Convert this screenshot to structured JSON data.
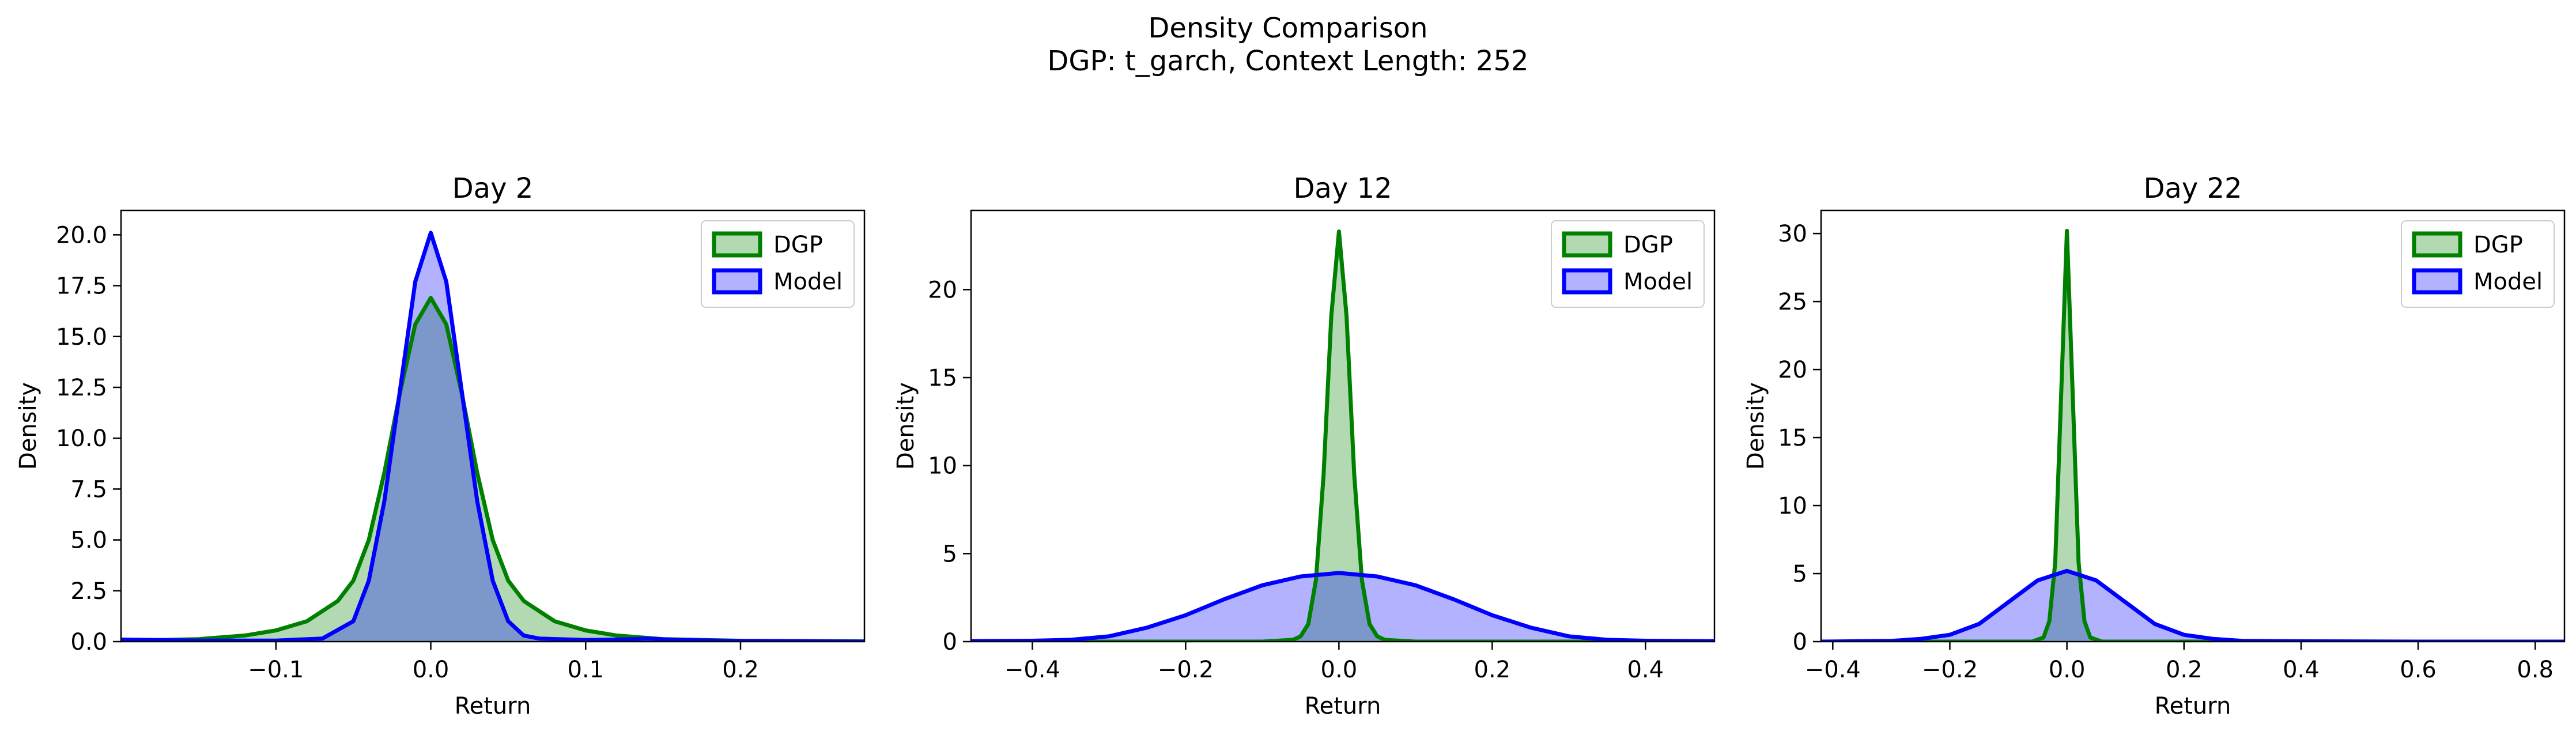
{
  "figure": {
    "title_line1": "Density Comparison",
    "title_line2": "DGP: t_garch, Context Length: 252"
  },
  "chart_data": [
    {
      "type": "area",
      "title": "Day 2",
      "xlabel": "Return",
      "ylabel": "Density",
      "xlim": [
        -0.2,
        0.28
      ],
      "ylim": [
        0,
        21.2
      ],
      "xticks": [
        -0.1,
        0.0,
        0.1,
        0.2
      ],
      "xtick_labels": [
        "−0.1",
        "0.0",
        "0.1",
        "0.2"
      ],
      "yticks": [
        0,
        2.5,
        5,
        7.5,
        10,
        12.5,
        15,
        17.5,
        20
      ],
      "ytick_labels": [
        "0.0",
        "2.5",
        "5.0",
        "7.5",
        "10.0",
        "12.5",
        "15.0",
        "17.5",
        "20.0"
      ],
      "grid": false,
      "legend": "top-right",
      "series": [
        {
          "name": "DGP",
          "color": "#008000",
          "fill_color": "#008000",
          "x": [
            -0.2,
            -0.15,
            -0.12,
            -0.1,
            -0.08,
            -0.06,
            -0.05,
            -0.04,
            -0.03,
            -0.02,
            -0.01,
            0.0,
            0.01,
            0.02,
            0.03,
            0.04,
            0.05,
            0.06,
            0.08,
            0.1,
            0.12,
            0.15,
            0.2,
            0.28
          ],
          "y": [
            0.03,
            0.12,
            0.3,
            0.55,
            1.0,
            2.0,
            3.0,
            5.0,
            8.3,
            12.2,
            15.6,
            16.9,
            15.6,
            12.2,
            8.3,
            5.0,
            3.0,
            2.0,
            1.0,
            0.55,
            0.3,
            0.12,
            0.04,
            0.01
          ]
        },
        {
          "name": "Model",
          "color": "#0000ff",
          "fill_color": "#0000ff",
          "x": [
            -0.2,
            -0.15,
            -0.1,
            -0.07,
            -0.05,
            -0.04,
            -0.03,
            -0.02,
            -0.01,
            0.0,
            0.01,
            0.02,
            0.03,
            0.04,
            0.05,
            0.06,
            0.07,
            0.1,
            0.12,
            0.14,
            0.16,
            0.2,
            0.28
          ],
          "y": [
            0.1,
            0.05,
            0.05,
            0.15,
            1.0,
            3.0,
            6.9,
            12.3,
            17.7,
            20.1,
            17.7,
            12.3,
            6.9,
            3.0,
            1.0,
            0.3,
            0.15,
            0.08,
            0.1,
            0.15,
            0.08,
            0.03,
            0.0
          ]
        }
      ]
    },
    {
      "type": "area",
      "title": "Day 12",
      "xlabel": "Return",
      "ylabel": "Density",
      "xlim": [
        -0.48,
        0.49
      ],
      "ylim": [
        0,
        24.5
      ],
      "xticks": [
        -0.4,
        -0.2,
        0.0,
        0.2,
        0.4
      ],
      "xtick_labels": [
        "−0.4",
        "−0.2",
        "0.0",
        "0.2",
        "0.4"
      ],
      "yticks": [
        0,
        5,
        10,
        15,
        20
      ],
      "ytick_labels": [
        "0",
        "5",
        "10",
        "15",
        "20"
      ],
      "grid": false,
      "legend": "top-right",
      "series": [
        {
          "name": "DGP",
          "color": "#008000",
          "fill_color": "#008000",
          "x": [
            -0.48,
            -0.1,
            -0.06,
            -0.05,
            -0.04,
            -0.03,
            -0.02,
            -0.01,
            0.0,
            0.01,
            0.02,
            0.03,
            0.04,
            0.05,
            0.06,
            0.1,
            0.49
          ],
          "y": [
            0.0,
            0.0,
            0.1,
            0.3,
            1.0,
            3.5,
            9.5,
            18.5,
            23.3,
            18.5,
            9.5,
            3.5,
            1.0,
            0.3,
            0.1,
            0.0,
            0.0
          ]
        },
        {
          "name": "Model",
          "color": "#0000ff",
          "fill_color": "#0000ff",
          "x": [
            -0.48,
            -0.4,
            -0.35,
            -0.3,
            -0.25,
            -0.2,
            -0.15,
            -0.1,
            -0.05,
            0.0,
            0.05,
            0.1,
            0.15,
            0.2,
            0.25,
            0.3,
            0.35,
            0.4,
            0.49
          ],
          "y": [
            0.03,
            0.05,
            0.1,
            0.3,
            0.8,
            1.5,
            2.4,
            3.2,
            3.7,
            3.9,
            3.7,
            3.2,
            2.4,
            1.5,
            0.8,
            0.3,
            0.1,
            0.05,
            0.02
          ]
        }
      ]
    },
    {
      "type": "area",
      "title": "Day 22",
      "xlabel": "Return",
      "ylabel": "Density",
      "xlim": [
        -0.42,
        0.85
      ],
      "ylim": [
        0,
        31.7
      ],
      "xticks": [
        -0.4,
        -0.2,
        0.0,
        0.2,
        0.4,
        0.6,
        0.8
      ],
      "xtick_labels": [
        "−0.4",
        "−0.2",
        "0.0",
        "0.2",
        "0.4",
        "0.6",
        "0.8"
      ],
      "yticks": [
        0,
        5,
        10,
        15,
        20,
        25,
        30
      ],
      "ytick_labels": [
        "0",
        "5",
        "10",
        "15",
        "20",
        "25",
        "30"
      ],
      "grid": false,
      "legend": "top-right",
      "series": [
        {
          "name": "DGP",
          "color": "#008000",
          "fill_color": "#008000",
          "x": [
            -0.42,
            -0.06,
            -0.04,
            -0.03,
            -0.02,
            -0.01,
            0.0,
            0.01,
            0.02,
            0.03,
            0.04,
            0.06,
            0.85
          ],
          "y": [
            0.0,
            0.0,
            0.3,
            1.5,
            5.8,
            18.0,
            30.2,
            18.0,
            5.8,
            1.5,
            0.3,
            0.0,
            0.0
          ]
        },
        {
          "name": "Model",
          "color": "#0000ff",
          "fill_color": "#0000ff",
          "x": [
            -0.42,
            -0.3,
            -0.25,
            -0.2,
            -0.15,
            -0.1,
            -0.05,
            0.0,
            0.05,
            0.1,
            0.15,
            0.2,
            0.25,
            0.3,
            0.4,
            0.6,
            0.85
          ],
          "y": [
            0.0,
            0.05,
            0.2,
            0.5,
            1.3,
            2.9,
            4.5,
            5.2,
            4.5,
            2.9,
            1.3,
            0.5,
            0.2,
            0.05,
            0.02,
            0.0,
            0.0
          ]
        }
      ]
    }
  ]
}
